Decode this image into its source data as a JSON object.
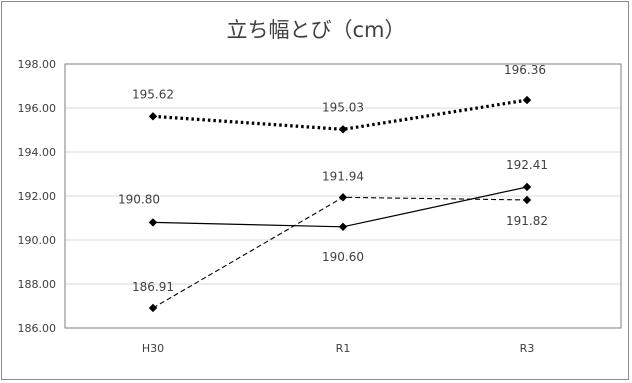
{
  "chart_data": {
    "type": "line",
    "title": "立ち幅とび（cm）",
    "categories": [
      "H30",
      "R1",
      "R3"
    ],
    "ylim": [
      186.0,
      198.0
    ],
    "yticks": [
      "198.00",
      "196.00",
      "194.00",
      "192.00",
      "190.00",
      "188.00",
      "186.00"
    ],
    "grid": true,
    "series": [
      {
        "style": "dotted-thick",
        "color": "#000000",
        "values": [
          195.62,
          195.03,
          196.36
        ],
        "labels": [
          "195.62",
          "195.03",
          "196.36"
        ]
      },
      {
        "style": "solid",
        "color": "#000000",
        "values": [
          190.8,
          190.6,
          192.41
        ],
        "labels": [
          "190.80",
          "190.60",
          "192.41"
        ]
      },
      {
        "style": "dashed",
        "color": "#000000",
        "values": [
          186.91,
          191.94,
          191.82
        ],
        "labels": [
          "186.91",
          "191.94",
          "191.82"
        ]
      }
    ]
  }
}
